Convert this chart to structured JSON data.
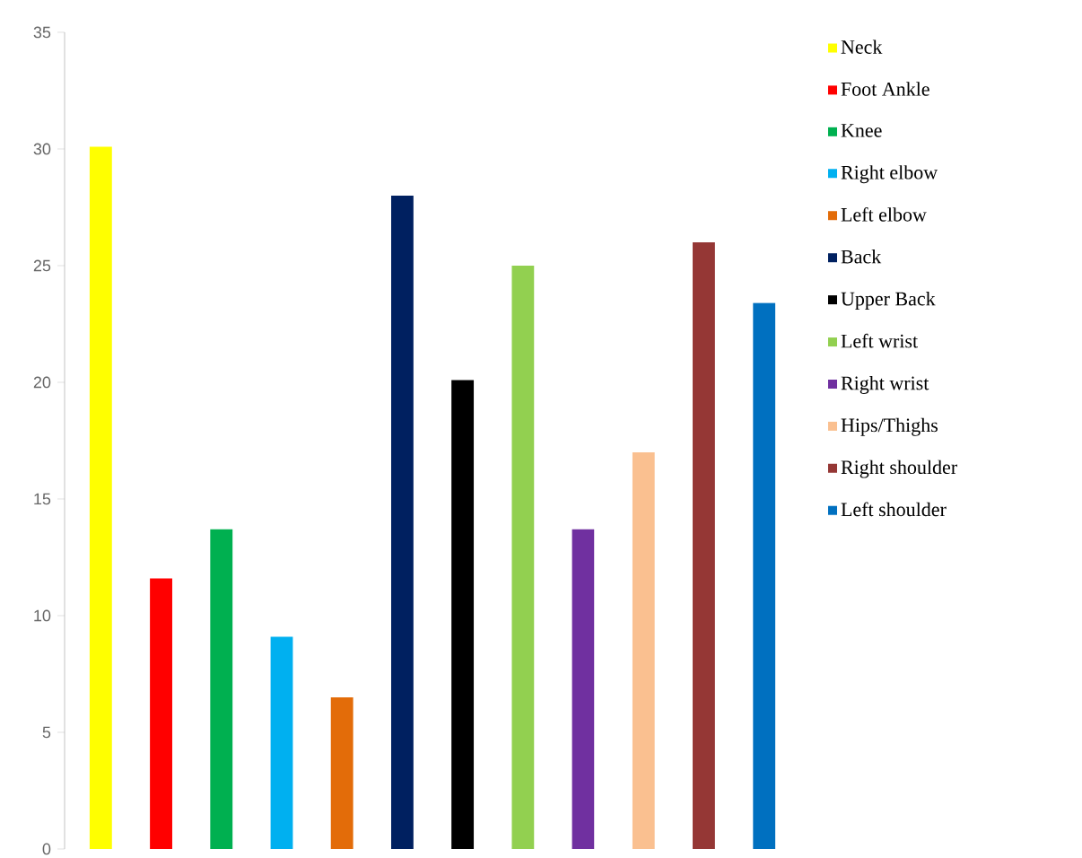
{
  "chart_data": {
    "type": "bar",
    "stacked": true,
    "categories": [
      null,
      null,
      null,
      null,
      null,
      null,
      null,
      null,
      null,
      null,
      null,
      null
    ],
    "series": [
      {
        "name": "Neck",
        "color": "#ffff00",
        "values": [
          30.1,
          null,
          null,
          null,
          null,
          null,
          null,
          null,
          null,
          null,
          null,
          null
        ]
      },
      {
        "name": "Foot Ankle",
        "color": "#ff0000",
        "values": [
          null,
          11.6,
          null,
          null,
          null,
          null,
          null,
          null,
          null,
          null,
          null,
          null
        ]
      },
      {
        "name": "Knee",
        "color": "#00b050",
        "values": [
          null,
          null,
          13.7,
          null,
          null,
          null,
          null,
          null,
          null,
          null,
          null,
          null
        ]
      },
      {
        "name": "Right elbow",
        "color": "#00b0f0",
        "values": [
          null,
          null,
          null,
          9.1,
          null,
          null,
          null,
          null,
          null,
          null,
          null,
          null
        ]
      },
      {
        "name": "Left elbow",
        "color": "#e36c09",
        "values": [
          null,
          null,
          null,
          null,
          6.5,
          null,
          null,
          null,
          null,
          null,
          null,
          null
        ]
      },
      {
        "name": "Back",
        "color": "#002060",
        "values": [
          null,
          null,
          null,
          null,
          null,
          28.0,
          null,
          null,
          null,
          null,
          null,
          null
        ]
      },
      {
        "name": "Upper Back",
        "color": "#000000",
        "values": [
          null,
          null,
          null,
          null,
          null,
          null,
          20.1,
          null,
          null,
          null,
          null,
          null
        ]
      },
      {
        "name": "Left wrist",
        "color": "#92d050",
        "values": [
          null,
          null,
          null,
          null,
          null,
          null,
          null,
          25.0,
          null,
          null,
          null,
          null
        ]
      },
      {
        "name": "Right wrist",
        "color": "#7030a0",
        "values": [
          null,
          null,
          null,
          null,
          null,
          null,
          null,
          null,
          13.7,
          null,
          null,
          null
        ]
      },
      {
        "name": "Hips/Thighs",
        "color": "#fac090",
        "values": [
          null,
          null,
          null,
          null,
          null,
          null,
          null,
          null,
          null,
          17.0,
          null,
          null
        ]
      },
      {
        "name": "Right shoulder",
        "color": "#953735",
        "values": [
          null,
          null,
          null,
          null,
          null,
          null,
          null,
          null,
          null,
          null,
          26.0,
          null
        ]
      },
      {
        "name": "Left shoulder",
        "color": "#0070c0",
        "values": [
          null,
          null,
          null,
          null,
          null,
          null,
          null,
          null,
          null,
          null,
          null,
          23.4
        ]
      }
    ],
    "ylim": [
      0,
      35
    ],
    "yticks": [
      0,
      5,
      10,
      15,
      20,
      25,
      30,
      35
    ],
    "tick_labels": "y",
    "legend": "right"
  }
}
